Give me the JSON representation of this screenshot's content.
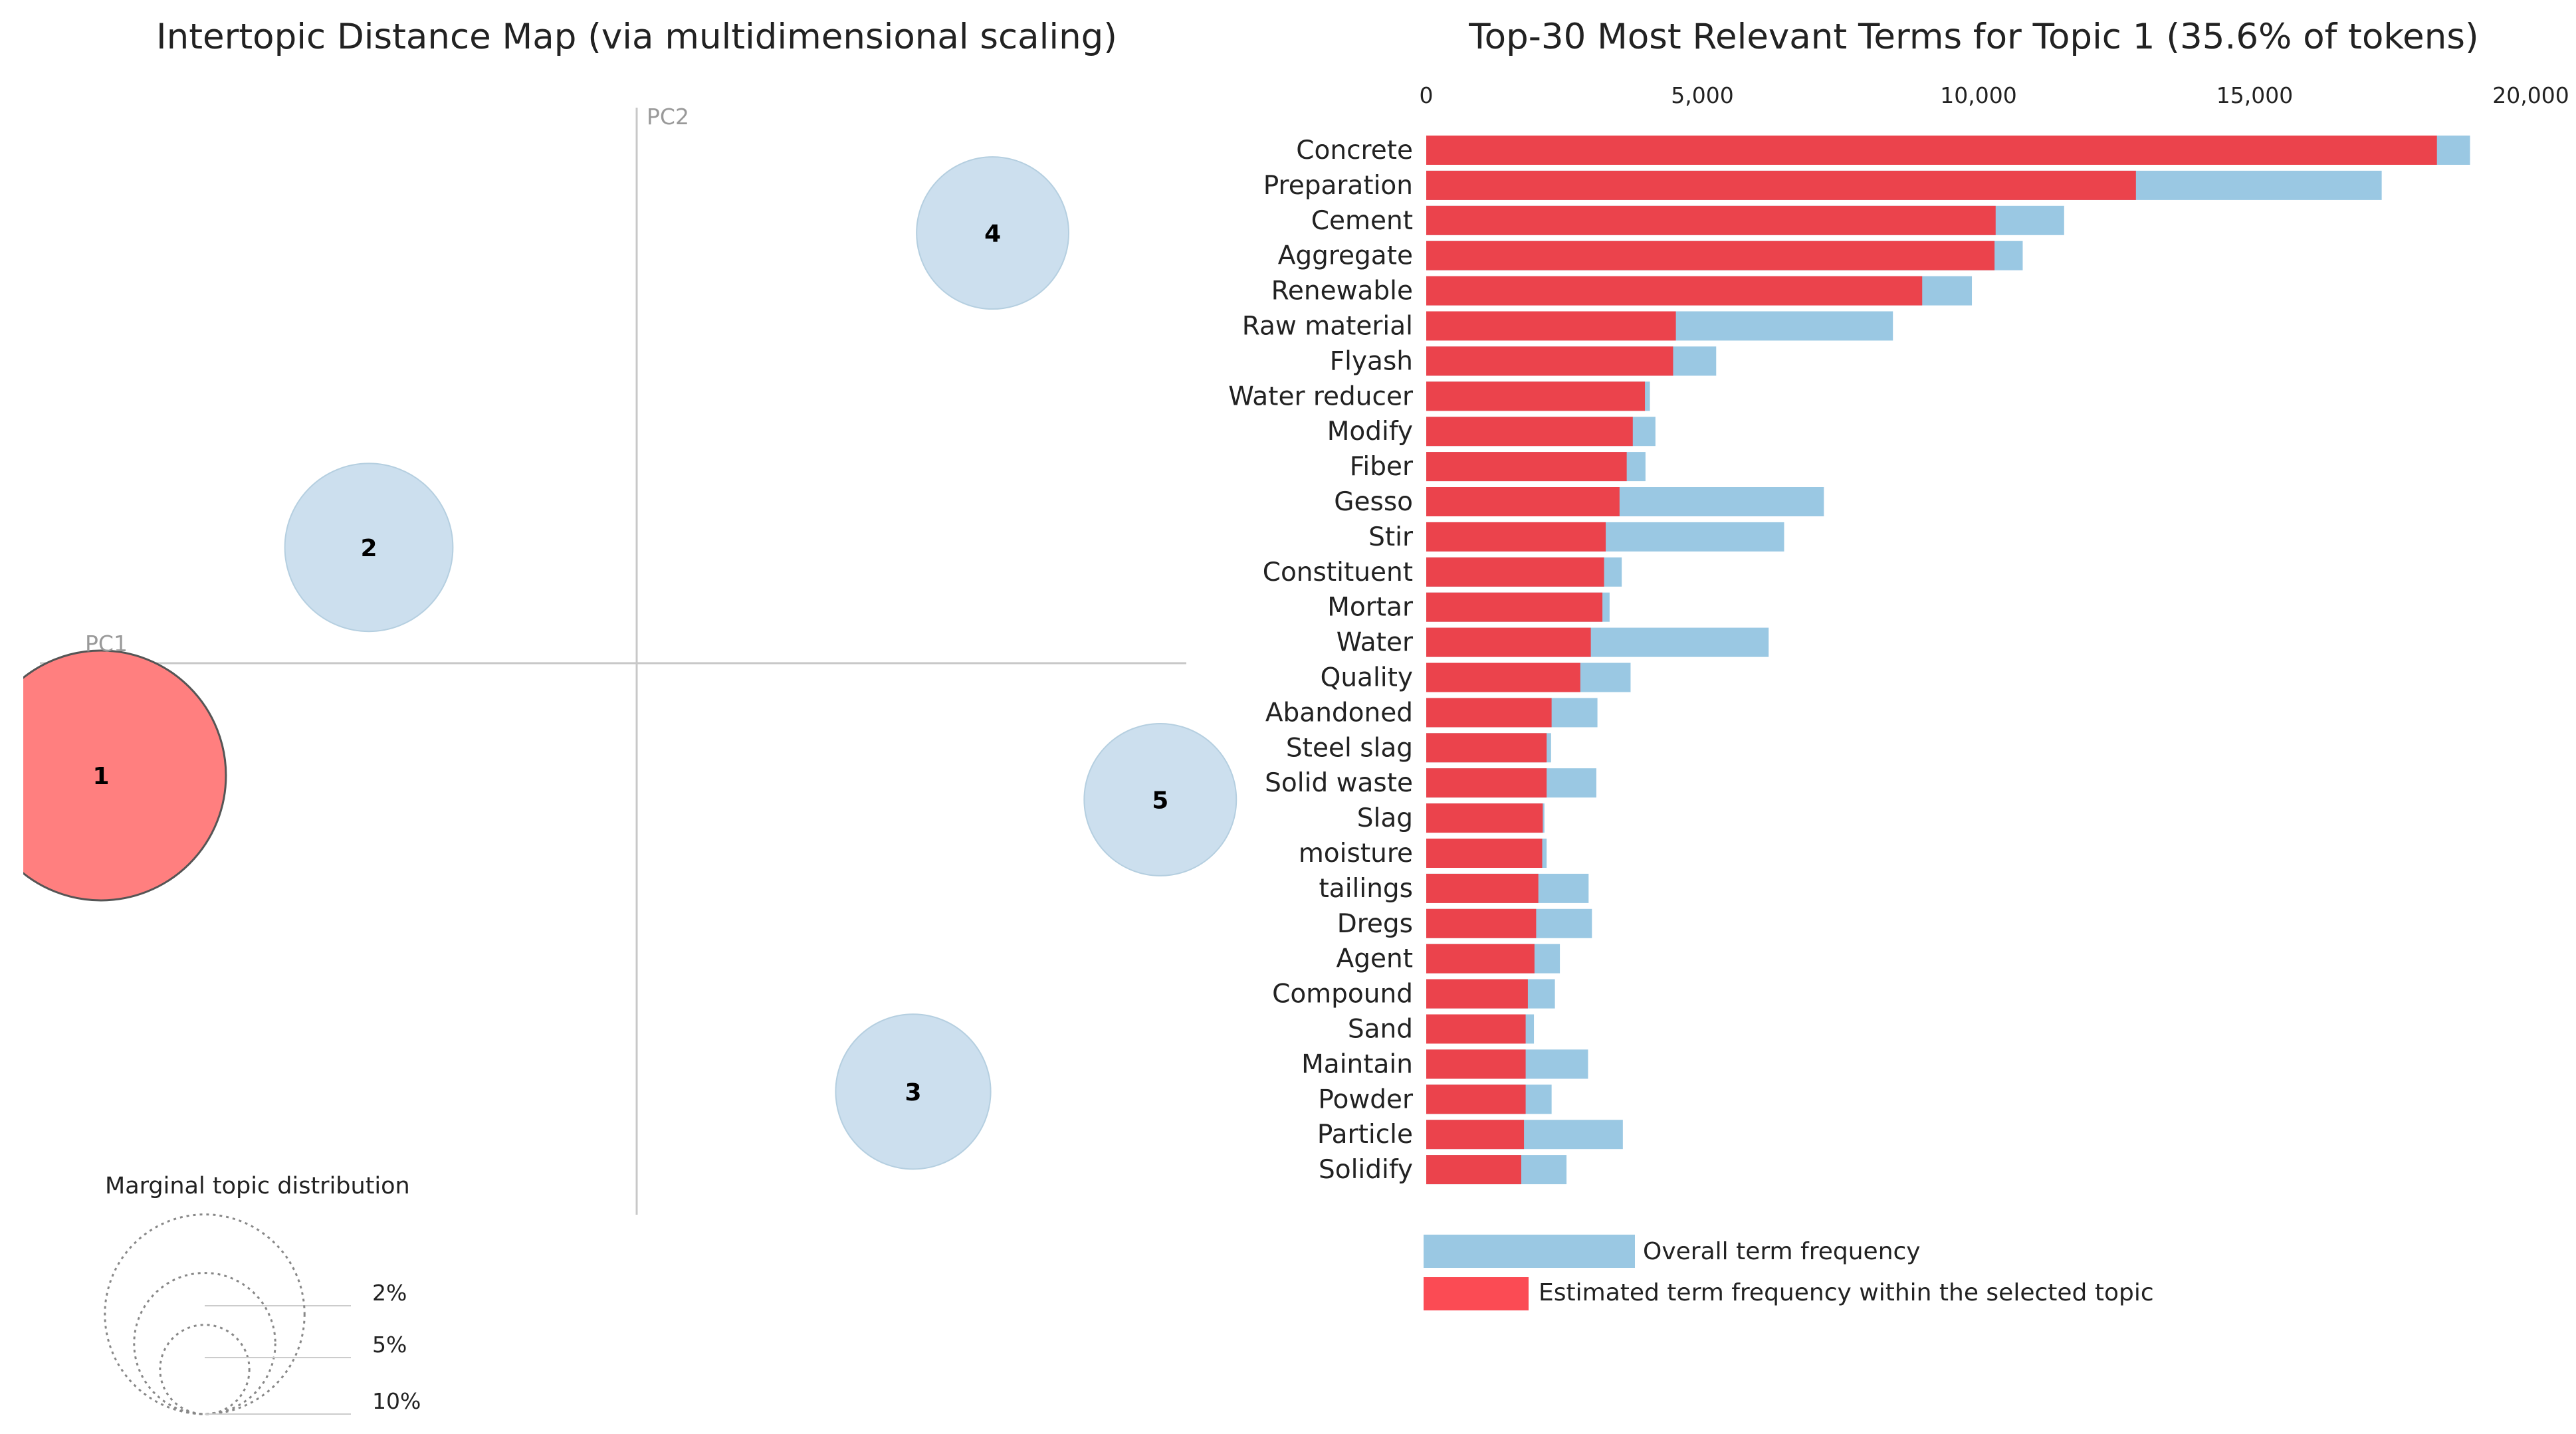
{
  "chart_data": [
    {
      "type": "scatter",
      "title": "Intertopic Distance Map (via multidimensional scaling)",
      "xlabel": "PC1",
      "ylabel": "PC2",
      "topics": [
        {
          "id": "1",
          "pc1": -0.31,
          "pc2": -0.065,
          "size_pct": 35.6,
          "selected": true
        },
        {
          "id": "2",
          "pc1": -0.155,
          "pc2": 0.067,
          "size_pct": 16.1,
          "selected": false
        },
        {
          "id": "3",
          "pc1": 0.16,
          "pc2": -0.248,
          "size_pct": 13.7,
          "selected": false
        },
        {
          "id": "4",
          "pc1": 0.206,
          "pc2": 0.249,
          "size_pct": 13.2,
          "selected": false
        },
        {
          "id": "5",
          "pc1": 0.303,
          "pc2": -0.079,
          "size_pct": 13.2,
          "selected": false
        }
      ],
      "marginal": {
        "title": "Marginal topic distribution",
        "labels": [
          "2%",
          "5%",
          "10%"
        ],
        "values": [
          2,
          5,
          10
        ]
      },
      "colors": {
        "selected": "#ff7f7f",
        "unselected": "#c6dcec"
      }
    },
    {
      "type": "bar",
      "orientation": "horizontal",
      "title": "Top-30 Most Relevant Terms for Topic 1 (35.6% of tokens)",
      "xlim": [
        0,
        20000
      ],
      "ticks": [
        0,
        5000,
        10000,
        15000,
        20000
      ],
      "tick_labels": [
        "0",
        "5,000",
        "10,000",
        "15,000",
        "20,000"
      ],
      "categories": [
        "Concrete",
        "Preparation",
        "Cement",
        "Aggregate",
        "Renewable",
        "Raw material",
        "Flyash",
        "Water reducer",
        "Modify",
        "Fiber",
        "Gesso",
        "Stir",
        "Constituent",
        "Mortar",
        "Water",
        "Quality",
        "Abandoned",
        "Steel slag",
        "Solid waste",
        "Slag",
        "moisture",
        "tailings",
        "Dregs",
        "Agent",
        "Compound",
        "Sand",
        "Maintain",
        "Powder",
        "Particle",
        "Solidify"
      ],
      "series": [
        {
          "name": "Overall term frequency",
          "color": "#9ac8e3",
          "values": [
            18900,
            17300,
            11550,
            10800,
            9880,
            8450,
            5250,
            4050,
            4150,
            3970,
            7200,
            6480,
            3540,
            3320,
            6200,
            3700,
            3100,
            2260,
            3080,
            2140,
            2180,
            2940,
            3000,
            2420,
            2330,
            1950,
            2930,
            2270,
            3560,
            2540
          ]
        },
        {
          "name": "Estimated term frequency within the selected topic",
          "color": "#eb434c",
          "values": [
            18300,
            12850,
            10310,
            10290,
            8980,
            4520,
            4470,
            3960,
            3740,
            3630,
            3500,
            3250,
            3220,
            3190,
            2980,
            2790,
            2270,
            2180,
            2180,
            2110,
            2100,
            2030,
            1990,
            1960,
            1840,
            1800,
            1800,
            1800,
            1770,
            1720
          ]
        }
      ],
      "legend": [
        "Overall term frequency",
        "Estimated term frequency within the selected topic"
      ]
    }
  ]
}
